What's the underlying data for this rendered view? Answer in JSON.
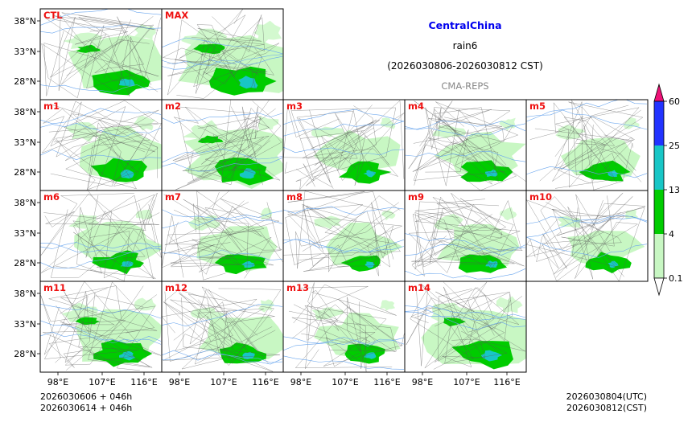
{
  "header": {
    "region": "CentralChina",
    "variable": "rain6",
    "period": "(2026030806-2026030812 CST)",
    "model": "CMA-REPS"
  },
  "colors": {
    "region_title": "#0000ee",
    "panel_label": "#ee1111",
    "model_name": "#888888",
    "lightest_green": "#c8f7c3",
    "green": "#00cc00",
    "cyan": "#18c6c6",
    "blue": "#2233ff",
    "magenta": "#ee1177",
    "river": "#6aa6ee",
    "border": "#555555"
  },
  "panels": [
    {
      "label": "CTL",
      "intensity": 0.75
    },
    {
      "label": "MAX",
      "intensity": 1.0
    },
    {
      "label": "m1",
      "intensity": 0.7
    },
    {
      "label": "m2",
      "intensity": 0.8
    },
    {
      "label": "m3",
      "intensity": 0.55
    },
    {
      "label": "m4",
      "intensity": 0.6
    },
    {
      "label": "m5",
      "intensity": 0.55
    },
    {
      "label": "m6",
      "intensity": 0.6
    },
    {
      "label": "m7",
      "intensity": 0.6
    },
    {
      "label": "m8",
      "intensity": 0.5
    },
    {
      "label": "m9",
      "intensity": 0.6
    },
    {
      "label": "m10",
      "intensity": 0.5
    },
    {
      "label": "m11",
      "intensity": 0.75
    },
    {
      "label": "m12",
      "intensity": 0.6
    },
    {
      "label": "m13",
      "intensity": 0.55
    },
    {
      "label": "m14",
      "intensity": 0.85
    }
  ],
  "axes": {
    "lat_ticks": [
      "38°N",
      "33°N",
      "28°N"
    ],
    "lon_ticks": [
      "98°E",
      "107°E",
      "116°E"
    ]
  },
  "colorbar": {
    "levels": [
      "60",
      "25",
      "13",
      "4",
      "0.1"
    ]
  },
  "footer": {
    "init_line1": "2026030606  +  046h",
    "init_line2": "2026030614  +  046h",
    "utc_line": "2026030804(UTC)",
    "cst_line": "2026030812(CST)"
  }
}
